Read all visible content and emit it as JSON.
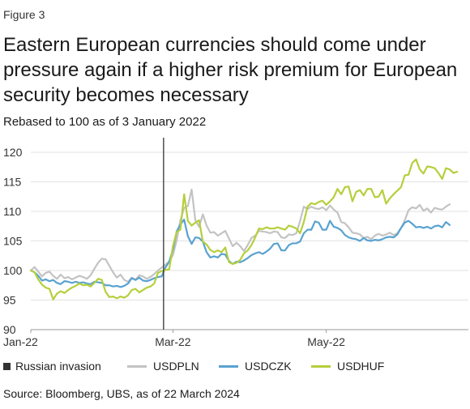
{
  "figure_label": "Figure 3",
  "title": "Eastern European currencies should come under pressure again if a higher risk premium for European security becomes necessary",
  "subtitle": "Rebased to 100 as of 3 January 2022",
  "source": "Source: Bloomberg, UBS, as of 22 March 2024",
  "legend": [
    {
      "label": "Russian invasion",
      "color": "#333333",
      "shape": "square"
    },
    {
      "label": "USDPLN",
      "color": "#c3c3c3",
      "shape": "line"
    },
    {
      "label": "USDCZK",
      "color": "#5aa2d0",
      "shape": "line"
    },
    {
      "label": "USDHUF",
      "color": "#b5cf3c",
      "shape": "line"
    }
  ],
  "chart_data": {
    "type": "line",
    "title": "",
    "xlabel": "",
    "ylabel": "",
    "ylim": [
      90,
      120
    ],
    "yticks": [
      90,
      95,
      100,
      105,
      110,
      115,
      120
    ],
    "xticks": [
      {
        "label": "Jan-22",
        "x": 0
      },
      {
        "label": "Mar-22",
        "x": 38
      },
      {
        "label": "May-22",
        "x": 79
      }
    ],
    "xlim": [
      0,
      117
    ],
    "grid": "horizontal",
    "invasion_marker": {
      "label": "Russian invasion",
      "x": 35.5
    },
    "series": [
      {
        "name": "USDPLN",
        "color": "#c3c3c3",
        "values": [
          100,
          100.6,
          99.8,
          99,
          99.6,
          99.8,
          99.1,
          98.6,
          99.3,
          98.7,
          98.9,
          98.5,
          98.8,
          99.1,
          98.9,
          98.6,
          99.2,
          100.3,
          101.3,
          102,
          101.9,
          100.8,
          99.7,
          98.8,
          99.3,
          98.4,
          98.1,
          98.8,
          98.4,
          99.2,
          99,
          98.6,
          98.9,
          99.4,
          100,
          100.5,
          101,
          101.5,
          102.6,
          105.1,
          108.5,
          110.6,
          110.9,
          113.7,
          108.5,
          107.4,
          109.5,
          107.6,
          106.4,
          106.5,
          105.9,
          106.3,
          106.7,
          105.4,
          104.1,
          104.7,
          104.1,
          103.3,
          104.3,
          105.5,
          105.9,
          106.7,
          106.6,
          106.5,
          106.3,
          106.6,
          106.5,
          105.6,
          105.5,
          106.1,
          106,
          106.3,
          108.4,
          110.8,
          110.4,
          110.8,
          110.5,
          110.4,
          110.7,
          110.2,
          111,
          110.3,
          109.8,
          108.2,
          108,
          107.3,
          106.4,
          106.3,
          106.1,
          105.5,
          105.7,
          105.3,
          105.9,
          106.2,
          105.9,
          106.1,
          106.4,
          106,
          106.3,
          107.2,
          108.5,
          110.2,
          110.7,
          110.5,
          111.1,
          110.1,
          110.5,
          109.8,
          110.6,
          110.4,
          110.3,
          110.8,
          111.2
        ]
      },
      {
        "name": "USDCZK",
        "color": "#5aa2d0",
        "values": [
          100,
          99.7,
          99.1,
          98.3,
          98.5,
          98.2,
          98.4,
          97.9,
          97.7,
          98.2,
          98.1,
          97.9,
          98.1,
          97.9,
          98,
          97.8,
          97.7,
          98.1,
          98,
          97.9,
          97.5,
          97.5,
          97.3,
          97.4,
          97.2,
          97.4,
          97.8,
          98.7,
          98.4,
          98.8,
          98.3,
          98.2,
          98.4,
          98.7,
          98.9,
          99,
          100.5,
          101.5,
          103.5,
          106.6,
          107.8,
          108.6,
          105.8,
          104.5,
          105.6,
          105.5,
          104.9,
          103.1,
          102.2,
          102.4,
          102.2,
          102.8,
          102.7,
          101.6,
          101.1,
          101.5,
          101.4,
          101.7,
          102.1,
          102.6,
          102.9,
          103.1,
          102.8,
          103.2,
          103.7,
          104.5,
          104.6,
          103.4,
          103.4,
          104.3,
          104.6,
          104.6,
          104.9,
          106.3,
          106.9,
          106.9,
          108.3,
          108.1,
          106.9,
          106.9,
          108.4,
          107.4,
          107.2,
          106.8,
          106,
          105.6,
          105.4,
          105.3,
          105,
          105.5,
          105.1,
          105,
          105.2,
          105.1,
          105.3,
          105.6,
          105.7,
          105.6,
          106.1,
          107.2,
          108.1,
          108.4,
          107.9,
          107.3,
          107.4,
          107.2,
          107.4,
          107.1,
          107.5,
          107.6,
          107.3,
          108.2,
          107.7
        ]
      },
      {
        "name": "USDHUF",
        "color": "#b5cf3c",
        "values": [
          100,
          99.7,
          98.5,
          97.6,
          97.1,
          96.9,
          95.1,
          96.1,
          96.5,
          96.2,
          96.7,
          97.1,
          97.4,
          97.8,
          97.5,
          97.6,
          97.3,
          97.9,
          98.6,
          98.4,
          96.4,
          95.5,
          95.6,
          95.3,
          95.6,
          95.4,
          95.8,
          96.7,
          96.9,
          96.3,
          96.7,
          97.1,
          97.3,
          97.8,
          99.6,
          99.9,
          100.1,
          100.2,
          104.1,
          106.5,
          106.9,
          112.9,
          108.4,
          107.6,
          108.1,
          108.5,
          104.9,
          104.4,
          103.5,
          103.1,
          103.4,
          103.1,
          103.9,
          101.4,
          101.1,
          101.3,
          101.8,
          102.9,
          103.4,
          104.3,
          105.6,
          107.1,
          107,
          107.3,
          107.1,
          107.1,
          107.3,
          107.1,
          106.9,
          107.6,
          107.4,
          107.1,
          106.3,
          108.2,
          110.8,
          111.4,
          111.2,
          111.6,
          111.8,
          111.1,
          111.7,
          112.4,
          113.8,
          112.9,
          114.1,
          114.2,
          111.7,
          113.3,
          113.6,
          112.7,
          113.8,
          113.8,
          112.4,
          112.5,
          113.6,
          111.3,
          112.2,
          112.9,
          113.5,
          114.1,
          116.1,
          116.2,
          118.2,
          118.8,
          117.1,
          116.4,
          117.6,
          117.5,
          117.3,
          116.5,
          115.5,
          117.3,
          117.1,
          116.5,
          116.7
        ]
      }
    ]
  }
}
